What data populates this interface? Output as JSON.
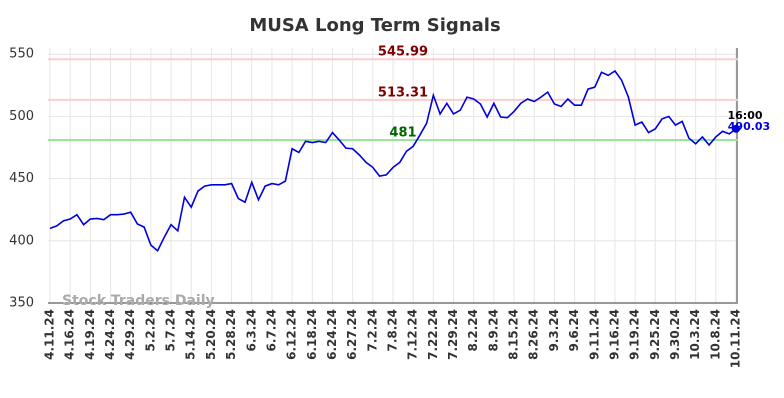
{
  "chart_data": {
    "type": "line",
    "title": "MUSA Long Term Signals",
    "watermark": "Stock Traders Daily",
    "categories": [
      "4.11.24",
      null,
      null,
      "4.16.24",
      null,
      null,
      "4.19.24",
      null,
      null,
      "4.24.24",
      null,
      null,
      "4.29.24",
      null,
      null,
      "5.2.24",
      null,
      null,
      "5.7.24",
      null,
      null,
      "5.14.24",
      null,
      null,
      "5.20.24",
      null,
      null,
      "5.28.24",
      null,
      null,
      "6.3.24",
      null,
      null,
      "6.7.24",
      null,
      null,
      "6.12.24",
      null,
      null,
      "6.18.24",
      null,
      null,
      "6.24.24",
      null,
      null,
      "6.27.24",
      null,
      null,
      "7.2.24",
      null,
      null,
      "7.8.24",
      null,
      null,
      "7.12.24",
      null,
      null,
      "7.22.24",
      null,
      null,
      "7.29.24",
      null,
      null,
      "8.2.24",
      null,
      null,
      "8.9.24",
      null,
      null,
      "8.15.24",
      null,
      null,
      "8.26.24",
      null,
      null,
      "9.3.24",
      null,
      null,
      "9.6.24",
      null,
      null,
      "9.11.24",
      null,
      null,
      "9.16.24",
      null,
      null,
      "9.19.24",
      null,
      null,
      "9.25.24",
      null,
      null,
      "9.30.24",
      null,
      null,
      "10.3.24",
      null,
      null,
      "10.8.24",
      null,
      null,
      "10.11.24"
    ],
    "series": [
      {
        "color": "#0000dd",
        "values": [
          410,
          412,
          416,
          417.5,
          421,
          413,
          417.5,
          418,
          417,
          421,
          421,
          421.5,
          423,
          413.5,
          411,
          396.5,
          392,
          403,
          413,
          408,
          435,
          427,
          440,
          444,
          445,
          445,
          445,
          446,
          434,
          431,
          447,
          433,
          444,
          446,
          445,
          448,
          474,
          471,
          480,
          479,
          480,
          479,
          487,
          481,
          474.5,
          474,
          469,
          463,
          459,
          452,
          453,
          459,
          463,
          472,
          476,
          485,
          494.5,
          517,
          502,
          510.5,
          502,
          505,
          515.5,
          514,
          510,
          499.5,
          510.5,
          499.5,
          499,
          504,
          510.5,
          514,
          512,
          515.5,
          519.5,
          510,
          508,
          514,
          509,
          509,
          522,
          523.5,
          535.5,
          533,
          536.5,
          529,
          515.5,
          493,
          495.5,
          487,
          490,
          498,
          500,
          493,
          496,
          482.5,
          478,
          483.5,
          477,
          483.5,
          488,
          486,
          490.03
        ]
      }
    ],
    "reference_lines": [
      {
        "value": 545.99,
        "color": "#ffcccc",
        "label_color": "#800000"
      },
      {
        "value": 513.31,
        "color": "#ffcccc",
        "label_color": "#800000"
      },
      {
        "value": 481,
        "color": "#99e699",
        "label_color": "#006600"
      }
    ],
    "last_point_label": "16:00",
    "ylim": [
      350,
      555
    ],
    "yticks": [
      350,
      400,
      450,
      500,
      550
    ],
    "grid": true
  }
}
